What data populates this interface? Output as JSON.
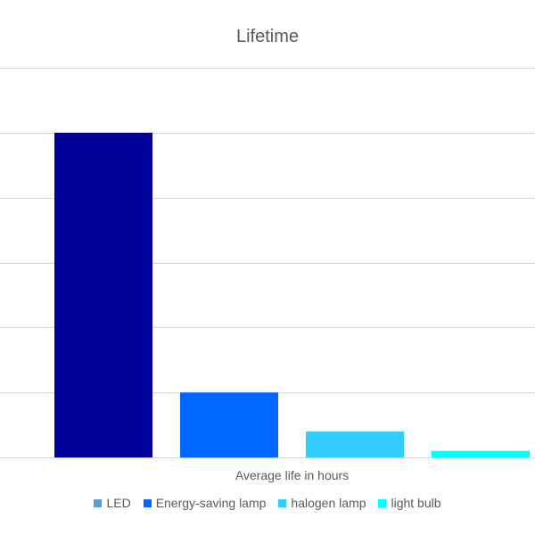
{
  "chart_data": {
    "type": "bar",
    "title": "Lifetime",
    "xlabel": "Average life in hours",
    "ylabel": "",
    "grid": true,
    "legend_position": "bottom",
    "ylim": [
      0,
      6
    ],
    "y_ticks": [
      0,
      1,
      2,
      3,
      4,
      5,
      6
    ],
    "categories": [
      "Average life in hours"
    ],
    "series": [
      {
        "name": "LED",
        "values": [
          5.0
        ],
        "color": "#000099",
        "legend_color": "#5b9bd5"
      },
      {
        "name": "Energy-saving lamp",
        "values": [
          1.0
        ],
        "color": "#0066ff",
        "legend_color": "#0066ff"
      },
      {
        "name": "halogen lamp",
        "values": [
          0.4
        ],
        "color": "#33ccff",
        "legend_color": "#33ccff"
      },
      {
        "name": "light bulb",
        "values": [
          0.1
        ],
        "color": "#00ffff",
        "legend_color": "#00ffff"
      }
    ]
  }
}
